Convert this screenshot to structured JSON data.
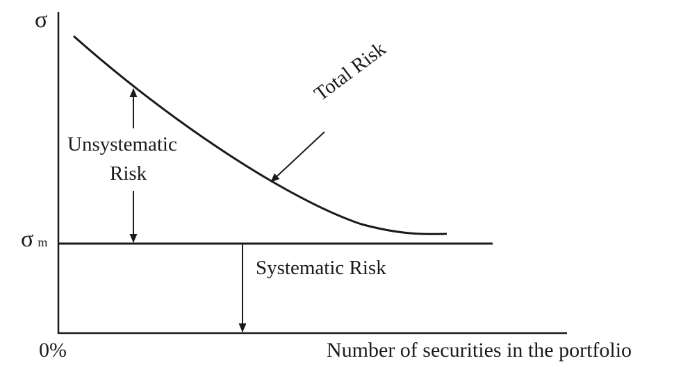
{
  "diagram": {
    "y_axis_label": "σ",
    "market_risk_symbol": "σ",
    "market_risk_subscript": "m",
    "origin_label": "0%",
    "x_axis_label": "Number of securities in the portfolio",
    "total_risk_label": "Total Risk",
    "unsystematic_label_line1": "Unsystematic",
    "unsystematic_label_line2": "Risk",
    "systematic_label": "Systematic Risk"
  },
  "colors": {
    "ink": "#1a1a1a",
    "background": "#ffffff"
  }
}
